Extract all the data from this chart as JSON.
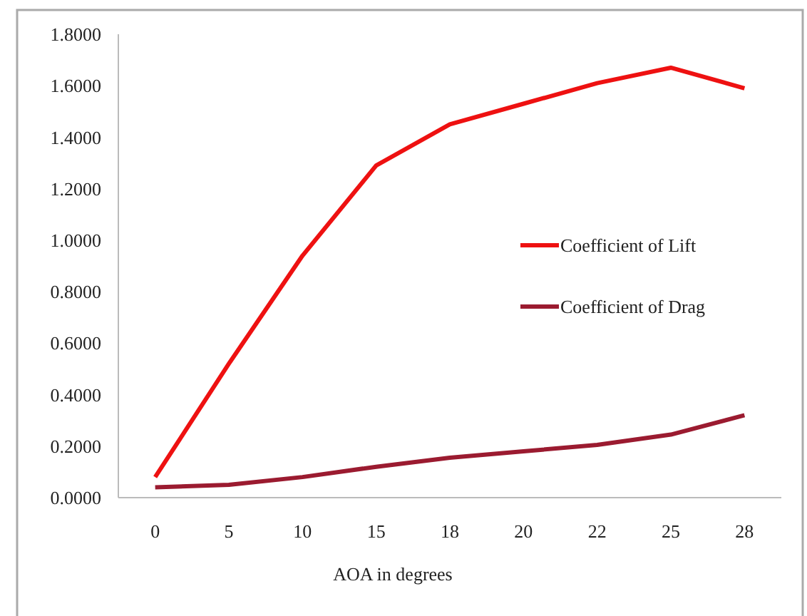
{
  "chart_data": {
    "type": "line",
    "xlabel": "AOA in degrees",
    "categories": [
      "0",
      "5",
      "10",
      "15",
      "18",
      "20",
      "22",
      "25",
      "28"
    ],
    "series": [
      {
        "name": "Coefficient of Lift",
        "color": "#ee1111",
        "values": [
          0.08,
          0.52,
          0.94,
          1.29,
          1.45,
          1.53,
          1.61,
          1.67,
          1.59
        ]
      },
      {
        "name": "Coefficient of Drag",
        "color": "#9b1b30",
        "values": [
          0.04,
          0.05,
          0.08,
          0.12,
          0.155,
          0.18,
          0.205,
          0.245,
          0.32
        ]
      }
    ],
    "ylim": [
      0,
      1.8
    ],
    "yticks": [
      {
        "value": 0,
        "label": "0.0000"
      },
      {
        "value": 0.2,
        "label": "0.2000"
      },
      {
        "value": 0.4,
        "label": "0.4000"
      },
      {
        "value": 0.6,
        "label": "0.6000"
      },
      {
        "value": 0.8,
        "label": "0.8000"
      },
      {
        "value": 1,
        "label": "1.0000"
      },
      {
        "value": 1.2,
        "label": "1.2000"
      },
      {
        "value": 1.4,
        "label": "1.4000"
      },
      {
        "value": 1.6,
        "label": "1.6000"
      },
      {
        "value": 1.8,
        "label": "1.8000"
      }
    ],
    "grid": false,
    "legend": "right",
    "line_style": "solid",
    "marker": "none"
  }
}
